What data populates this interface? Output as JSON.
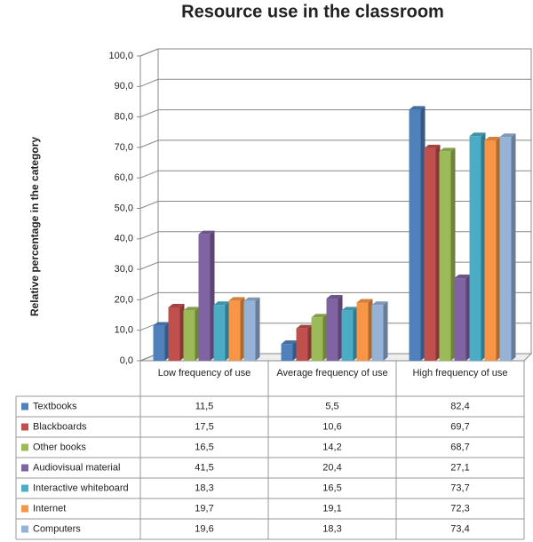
{
  "chart_data": {
    "type": "bar3d",
    "title": "Resource use in the classroom",
    "y_label": "Relative percentage in the category",
    "categories": [
      "Low frequency of use",
      "Average frequency of use",
      "High frequency of use"
    ],
    "ylim": [
      0,
      100
    ],
    "yticks": [
      {
        "value": 0,
        "label": "0,0"
      },
      {
        "value": 10,
        "label": "10,0"
      },
      {
        "value": 20,
        "label": "20,0"
      },
      {
        "value": 30,
        "label": "30,0"
      },
      {
        "value": 40,
        "label": "40,0"
      },
      {
        "value": 50,
        "label": "50,0"
      },
      {
        "value": 60,
        "label": "60,0"
      },
      {
        "value": 70,
        "label": "70,0"
      },
      {
        "value": 80,
        "label": "80,0"
      },
      {
        "value": 90,
        "label": "90,0"
      },
      {
        "value": 100,
        "label": "100,0"
      }
    ],
    "grid": true,
    "series": [
      {
        "name": "Textbooks",
        "color": "#4f81bd",
        "values": [
          11.5,
          5.5,
          82.4
        ],
        "value_labels": [
          "11,5",
          "5,5",
          "82,4"
        ]
      },
      {
        "name": "Blackboards",
        "color": "#c0504d",
        "values": [
          17.5,
          10.6,
          69.7
        ],
        "value_labels": [
          "17,5",
          "10,6",
          "69,7"
        ]
      },
      {
        "name": "Other books",
        "color": "#9bbb59",
        "values": [
          16.5,
          14.2,
          68.7
        ],
        "value_labels": [
          "16,5",
          "14,2",
          "68,7"
        ]
      },
      {
        "name": "Audiovisual material",
        "color": "#8064a2",
        "values": [
          41.5,
          20.4,
          27.1
        ],
        "value_labels": [
          "41,5",
          "20,4",
          "27,1"
        ]
      },
      {
        "name": "Interactive whiteboard",
        "color": "#4bacc6",
        "values": [
          18.3,
          16.5,
          73.7
        ],
        "value_labels": [
          "18,3",
          "16,5",
          "73,7"
        ]
      },
      {
        "name": "Internet",
        "color": "#f79646",
        "values": [
          19.7,
          19.1,
          72.3
        ],
        "value_labels": [
          "19,7",
          "19,1",
          "72,3"
        ]
      },
      {
        "name": "Computers",
        "color": "#95b3d7",
        "values": [
          19.6,
          18.3,
          73.4
        ],
        "value_labels": [
          "19,6",
          "18,3",
          "73,4"
        ]
      }
    ]
  }
}
